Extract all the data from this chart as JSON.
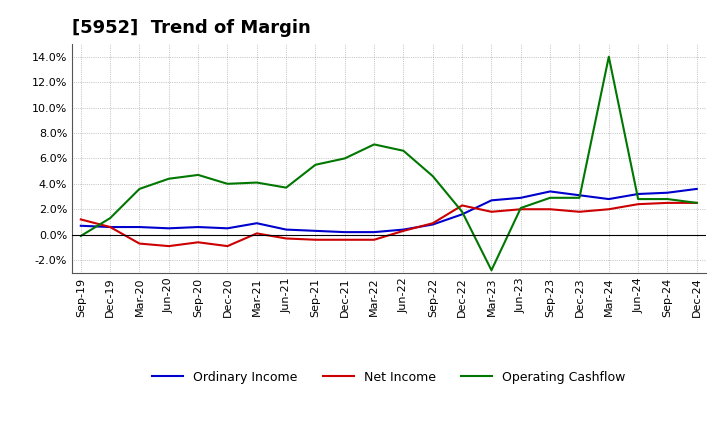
{
  "title": "[5952]  Trend of Margin",
  "x_labels": [
    "Sep-19",
    "Dec-19",
    "Mar-20",
    "Jun-20",
    "Sep-20",
    "Dec-20",
    "Mar-21",
    "Jun-21",
    "Sep-21",
    "Dec-21",
    "Mar-22",
    "Jun-22",
    "Sep-22",
    "Dec-22",
    "Mar-23",
    "Jun-23",
    "Sep-23",
    "Dec-23",
    "Mar-24",
    "Jun-24",
    "Sep-24",
    "Dec-24"
  ],
  "ordinary_income": [
    0.7,
    0.6,
    0.6,
    0.5,
    0.6,
    0.5,
    0.9,
    0.4,
    0.3,
    0.2,
    0.2,
    0.4,
    0.8,
    1.6,
    2.7,
    2.9,
    3.4,
    3.1,
    2.8,
    3.2,
    3.3,
    3.6
  ],
  "net_income": [
    1.2,
    0.6,
    -0.7,
    -0.9,
    -0.6,
    -0.9,
    0.1,
    -0.3,
    -0.4,
    -0.4,
    -0.4,
    0.3,
    0.9,
    2.3,
    1.8,
    2.0,
    2.0,
    1.8,
    2.0,
    2.4,
    2.5,
    2.5
  ],
  "operating_cashflow": [
    -0.1,
    1.3,
    3.6,
    4.4,
    4.7,
    4.0,
    4.1,
    3.7,
    5.5,
    6.0,
    7.1,
    6.6,
    4.6,
    1.8,
    -2.8,
    2.1,
    2.9,
    2.9,
    14.0,
    2.8,
    2.8,
    2.5
  ],
  "ylim": [
    -3.0,
    15.0
  ],
  "yticks": [
    -2.0,
    0.0,
    2.0,
    4.0,
    6.0,
    8.0,
    10.0,
    12.0,
    14.0
  ],
  "color_ordinary": "#0000cc",
  "color_net": "#cc0000",
  "color_cashflow": "#007700",
  "bg_color": "#ffffff",
  "plot_bg_color": "#ffffff",
  "grid_color": "#999999",
  "title_fontsize": 13,
  "label_fontsize": 8,
  "legend_fontsize": 9
}
